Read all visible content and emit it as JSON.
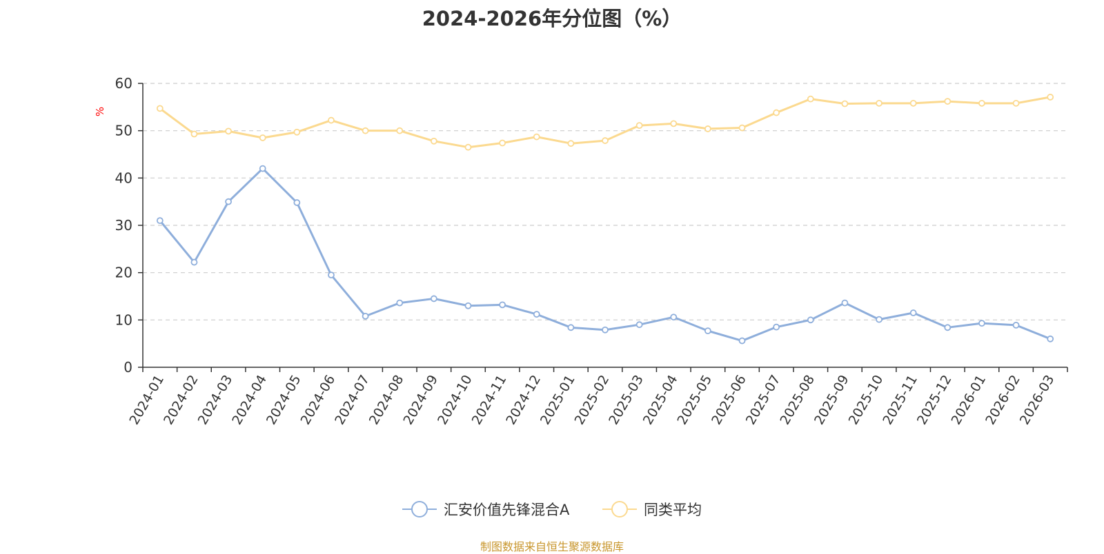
{
  "chart_data": {
    "type": "line",
    "title": "2024-2026年分位图（%）",
    "ylabel": "%",
    "xlabel": "",
    "ylim": [
      0,
      60
    ],
    "yticks": [
      0,
      10,
      20,
      30,
      40,
      50,
      60
    ],
    "grid": true,
    "categories": [
      "2024-01",
      "2024-02",
      "2024-03",
      "2024-04",
      "2024-05",
      "2024-06",
      "2024-07",
      "2024-08",
      "2024-09",
      "2024-10",
      "2024-11",
      "2024-12",
      "2025-01",
      "2025-02",
      "2025-03",
      "2025-04",
      "2025-05",
      "2025-06",
      "2025-07",
      "2025-08",
      "2025-09",
      "2025-10",
      "2025-11",
      "2025-12",
      "2026-01",
      "2026-02",
      "2026-03"
    ],
    "series": [
      {
        "name": "汇安价值先锋混合A",
        "color": "#8eaedb",
        "values": [
          31,
          22.2,
          35,
          42,
          34.8,
          19.5,
          10.8,
          13.6,
          14.5,
          13,
          13.2,
          11.2,
          8.4,
          7.9,
          9,
          10.6,
          7.7,
          5.6,
          8.5,
          10,
          13.6,
          10.1,
          11.5,
          8.4,
          9.3,
          8.9,
          6
        ]
      },
      {
        "name": "同类平均",
        "color": "#fbd98f",
        "values": [
          54.7,
          49.3,
          49.9,
          48.5,
          49.7,
          52.2,
          50,
          50,
          47.8,
          46.5,
          47.4,
          48.7,
          47.3,
          47.9,
          51.1,
          51.5,
          50.4,
          50.6,
          53.8,
          56.7,
          55.7,
          55.8,
          55.8,
          56.2,
          55.8,
          55.8,
          57.1
        ]
      }
    ],
    "legend_position": "bottom-center"
  },
  "source_note": "制图数据来自恒生聚源数据库",
  "colors": {
    "ylabel": "#ff0000",
    "axis": "#333333",
    "grid": "#cccccc",
    "source": "#c8962d"
  }
}
